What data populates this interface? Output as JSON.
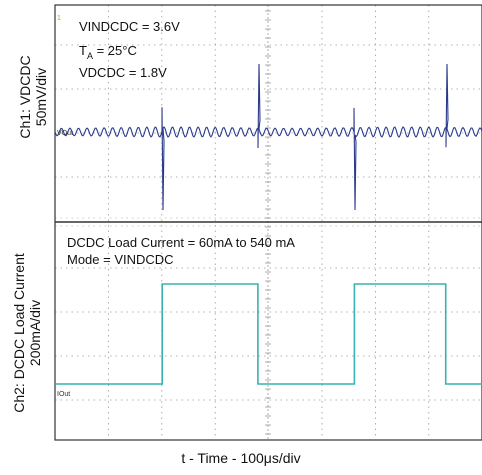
{
  "chart_data": [
    {
      "type": "line",
      "channel": "Ch1",
      "ylabel_line1": "Ch1: VDCDC",
      "ylabel_line2": "50mV/div",
      "trace_label": "VOut",
      "marker": "1",
      "annotations": {
        "vin": "VINDCDC = 3.6V",
        "ta_prefix": "T",
        "ta_sub": "A",
        "ta_value": " = 25°C",
        "vout": "VDCDC = 1.8V"
      },
      "description_values": {
        "ripple_amplitude_div": 0.2,
        "ripple_period_us": 16,
        "spike_times_us": [
          121,
          229,
          338,
          441
        ],
        "spike_directions": [
          "down",
          "up",
          "down",
          "up"
        ]
      },
      "trace_color": "#2b3a8c"
    },
    {
      "type": "line",
      "channel": "Ch2",
      "ylabel_line1": "Ch2: DCDC Load Current",
      "ylabel_line2": "200mA/div",
      "trace_label": "IOut",
      "annotations": {
        "load": "DCDC Load Current = 60mA to 540 mA",
        "mode": "Mode = VINDCDC"
      },
      "levels_mA": [
        60,
        540
      ],
      "x_us": [
        0,
        121,
        121,
        229,
        229,
        338,
        338,
        441,
        441,
        482
      ],
      "y_mA": [
        60,
        60,
        540,
        540,
        60,
        60,
        540,
        540,
        60,
        60
      ],
      "trace_color": "#35b3b0"
    }
  ],
  "xlabel": "t - Time - 100μs/div",
  "colors": {
    "grid": "#9a9a9a",
    "frame": "#333333",
    "background": "#ffffff"
  }
}
